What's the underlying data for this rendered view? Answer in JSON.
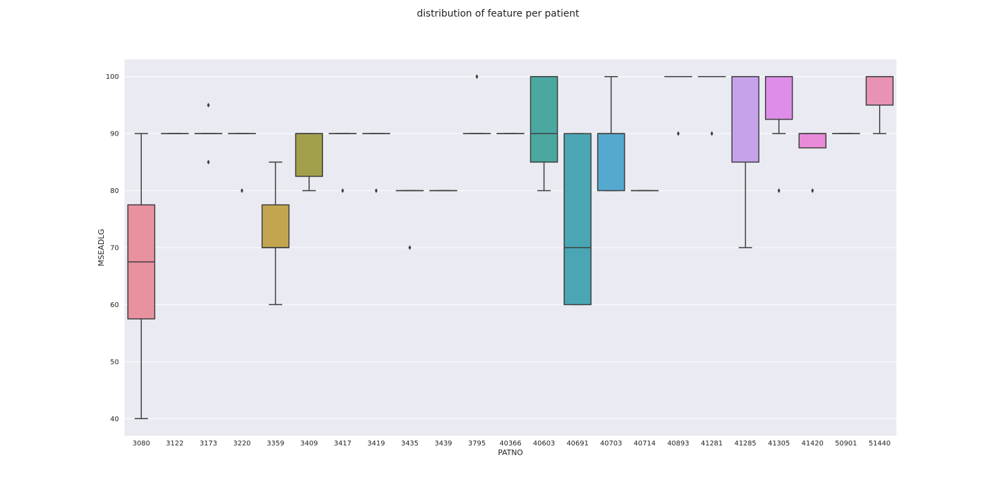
{
  "chart_data": {
    "type": "box",
    "title": "distribution of feature per patient",
    "xlabel": "PATNO",
    "ylabel": "MSEADLG",
    "ylim": [
      37,
      103
    ],
    "yticks": [
      40,
      50,
      60,
      70,
      80,
      90,
      100
    ],
    "grid": true,
    "categories": [
      "3080",
      "3122",
      "3173",
      "3220",
      "3359",
      "3409",
      "3417",
      "3419",
      "3435",
      "3439",
      "3795",
      "40366",
      "40603",
      "40691",
      "40703",
      "40714",
      "40893",
      "41281",
      "41285",
      "41305",
      "41420",
      "50901",
      "51440"
    ],
    "boxes": [
      {
        "label": "3080",
        "q1": 57.5,
        "median": 67.5,
        "q3": 77.5,
        "whislo": 40,
        "whishi": 90,
        "fliers": [],
        "color": "#e8919f"
      },
      {
        "label": "3122",
        "q1": 90,
        "median": 90,
        "q3": 90,
        "whislo": 90,
        "whishi": 90,
        "fliers": [],
        "color": "#e79a82"
      },
      {
        "label": "3173",
        "q1": 90,
        "median": 90,
        "q3": 90,
        "whislo": 90,
        "whishi": 90,
        "fliers": [
          85,
          95
        ],
        "color": "#e0a26e"
      },
      {
        "label": "3220",
        "q1": 90,
        "median": 90,
        "q3": 90,
        "whislo": 90,
        "whishi": 90,
        "fliers": [
          80
        ],
        "color": "#d2a45c"
      },
      {
        "label": "3359",
        "q1": 70,
        "median": 70,
        "q3": 77.5,
        "whislo": 60,
        "whishi": 85,
        "fliers": [],
        "color": "#c3a550"
      },
      {
        "label": "3409",
        "q1": 82.5,
        "median": 90,
        "q3": 90,
        "whislo": 80,
        "whishi": 90,
        "fliers": [],
        "color": "#a3a04c"
      },
      {
        "label": "3417",
        "q1": 90,
        "median": 90,
        "q3": 90,
        "whislo": 90,
        "whishi": 90,
        "fliers": [
          80
        ],
        "color": "#8aa64c"
      },
      {
        "label": "3419",
        "q1": 90,
        "median": 90,
        "q3": 90,
        "whislo": 90,
        "whishi": 90,
        "fliers": [
          80
        ],
        "color": "#6aab52"
      },
      {
        "label": "3435",
        "q1": 80,
        "median": 80,
        "q3": 80,
        "whislo": 80,
        "whishi": 80,
        "fliers": [
          70
        ],
        "color": "#55af72"
      },
      {
        "label": "3439",
        "q1": 80,
        "median": 80,
        "q3": 80,
        "whislo": 80,
        "whishi": 80,
        "fliers": [],
        "color": "#52ae8a"
      },
      {
        "label": "3795",
        "q1": 90,
        "median": 90,
        "q3": 90,
        "whislo": 90,
        "whishi": 90,
        "fliers": [
          100
        ],
        "color": "#52ad98"
      },
      {
        "label": "40366",
        "q1": 90,
        "median": 90,
        "q3": 90,
        "whislo": 90,
        "whishi": 90,
        "fliers": [],
        "color": "#52aca3"
      },
      {
        "label": "40603",
        "q1": 85,
        "median": 90,
        "q3": 100,
        "whislo": 80,
        "whishi": 100,
        "fliers": [],
        "color": "#4aa8a0"
      },
      {
        "label": "40691",
        "q1": 60,
        "median": 70,
        "q3": 90,
        "whislo": 60,
        "whishi": 90,
        "fliers": [],
        "color": "#4aa6b4"
      },
      {
        "label": "40703",
        "q1": 80,
        "median": 90,
        "q3": 90,
        "whislo": 80,
        "whishi": 100,
        "fliers": [],
        "color": "#55a9cf"
      },
      {
        "label": "40714",
        "q1": 80,
        "median": 80,
        "q3": 80,
        "whislo": 80,
        "whishi": 80,
        "fliers": [],
        "color": "#7aa9dc"
      },
      {
        "label": "40893",
        "q1": 100,
        "median": 100,
        "q3": 100,
        "whislo": 100,
        "whishi": 100,
        "fliers": [
          90
        ],
        "color": "#9ca8e4"
      },
      {
        "label": "41281",
        "q1": 100,
        "median": 100,
        "q3": 100,
        "whislo": 100,
        "whishi": 100,
        "fliers": [
          90
        ],
        "color": "#b3a4e8"
      },
      {
        "label": "41285",
        "q1": 85,
        "median": 100,
        "q3": 100,
        "whislo": 70,
        "whishi": 100,
        "fliers": [],
        "color": "#c6a2ea"
      },
      {
        "label": "41305",
        "q1": 92.5,
        "median": 100,
        "q3": 100,
        "whislo": 90,
        "whishi": 100,
        "fliers": [
          80
        ],
        "color": "#de8ee8"
      },
      {
        "label": "41420",
        "q1": 87.5,
        "median": 90,
        "q3": 90,
        "whislo": 87.5,
        "whishi": 90,
        "fliers": [
          80
        ],
        "color": "#e98ad8"
      },
      {
        "label": "50901",
        "q1": 90,
        "median": 90,
        "q3": 90,
        "whislo": 90,
        "whishi": 90,
        "fliers": [],
        "color": "#e98ac4"
      },
      {
        "label": "51440",
        "q1": 95,
        "median": 100,
        "q3": 100,
        "whislo": 90,
        "whishi": 100,
        "fliers": [],
        "color": "#e892b4"
      }
    ],
    "colors": {
      "plot_bg": "#eaeaf2",
      "grid": "#ffffff",
      "line": "#3d3d3d"
    }
  }
}
